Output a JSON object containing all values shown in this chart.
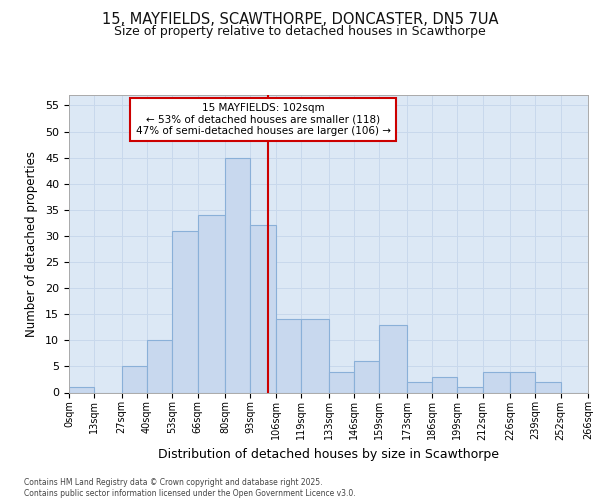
{
  "title_line1": "15, MAYFIELDS, SCAWTHORPE, DONCASTER, DN5 7UA",
  "title_line2": "Size of property relative to detached houses in Scawthorpe",
  "xlabel": "Distribution of detached houses by size in Scawthorpe",
  "ylabel": "Number of detached properties",
  "bin_labels": [
    "0sqm",
    "13sqm",
    "27sqm",
    "40sqm",
    "53sqm",
    "66sqm",
    "80sqm",
    "93sqm",
    "106sqm",
    "119sqm",
    "133sqm",
    "146sqm",
    "159sqm",
    "173sqm",
    "186sqm",
    "199sqm",
    "212sqm",
    "226sqm",
    "239sqm",
    "252sqm",
    "266sqm"
  ],
  "bar_values": [
    1,
    0,
    5,
    10,
    31,
    34,
    45,
    32,
    14,
    14,
    4,
    6,
    13,
    2,
    3,
    1,
    4,
    4,
    2,
    0
  ],
  "bar_color": "#c8d8ee",
  "bar_edge_color": "#8ab0d8",
  "vline_x": 102,
  "vline_color": "#cc0000",
  "annotation_line1": "15 MAYFIELDS: 102sqm",
  "annotation_line2": "← 53% of detached houses are smaller (118)",
  "annotation_line3": "47% of semi-detached houses are larger (106) →",
  "annotation_box_facecolor": "#ffffff",
  "annotation_box_edgecolor": "#cc0000",
  "grid_color": "#c8d8ec",
  "plot_bg_color": "#dce8f5",
  "fig_bg_color": "#ffffff",
  "ylim": [
    0,
    57
  ],
  "yticks": [
    0,
    5,
    10,
    15,
    20,
    25,
    30,
    35,
    40,
    45,
    50,
    55
  ],
  "bin_edges": [
    0,
    13,
    27,
    40,
    53,
    66,
    80,
    93,
    106,
    119,
    133,
    146,
    159,
    173,
    186,
    199,
    212,
    226,
    239,
    252,
    266
  ],
  "footer_text": "Contains HM Land Registry data © Crown copyright and database right 2025.\nContains public sector information licensed under the Open Government Licence v3.0."
}
